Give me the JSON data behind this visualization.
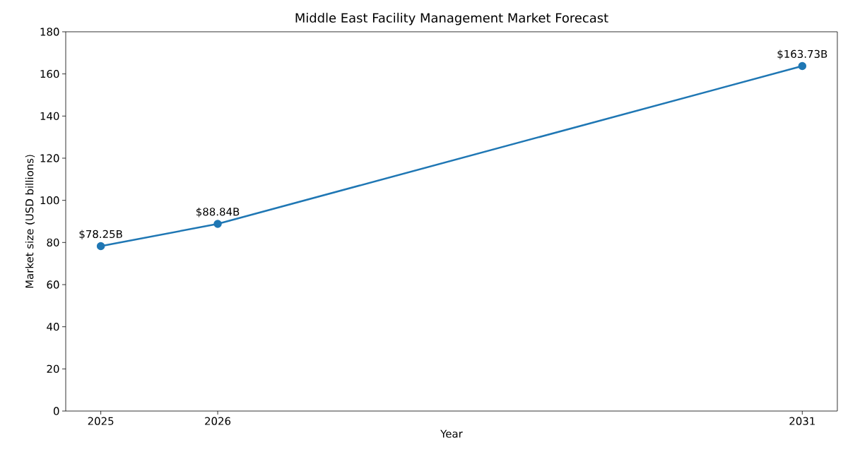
{
  "chart_data": {
    "type": "line",
    "title": "Middle East Facility Management Market Forecast",
    "xlabel": "Year",
    "ylabel": "Market size (USD billions)",
    "x": [
      2025,
      2026,
      2031
    ],
    "series": [
      {
        "color": "#1f77b4",
        "values": [
          78.25,
          88.84,
          163.73
        ],
        "value_labels": [
          "$78.25B",
          "$88.84B",
          "$163.73B"
        ]
      }
    ],
    "xlim": [
      2024.7,
      2031.3
    ],
    "xticks": [
      2025,
      2026,
      2031
    ],
    "ylim": [
      0,
      180
    ],
    "yticks": [
      0,
      20,
      40,
      60,
      80,
      100,
      120,
      140,
      160,
      180
    ],
    "marker": "circle",
    "line_style": "solid",
    "grid": false
  }
}
